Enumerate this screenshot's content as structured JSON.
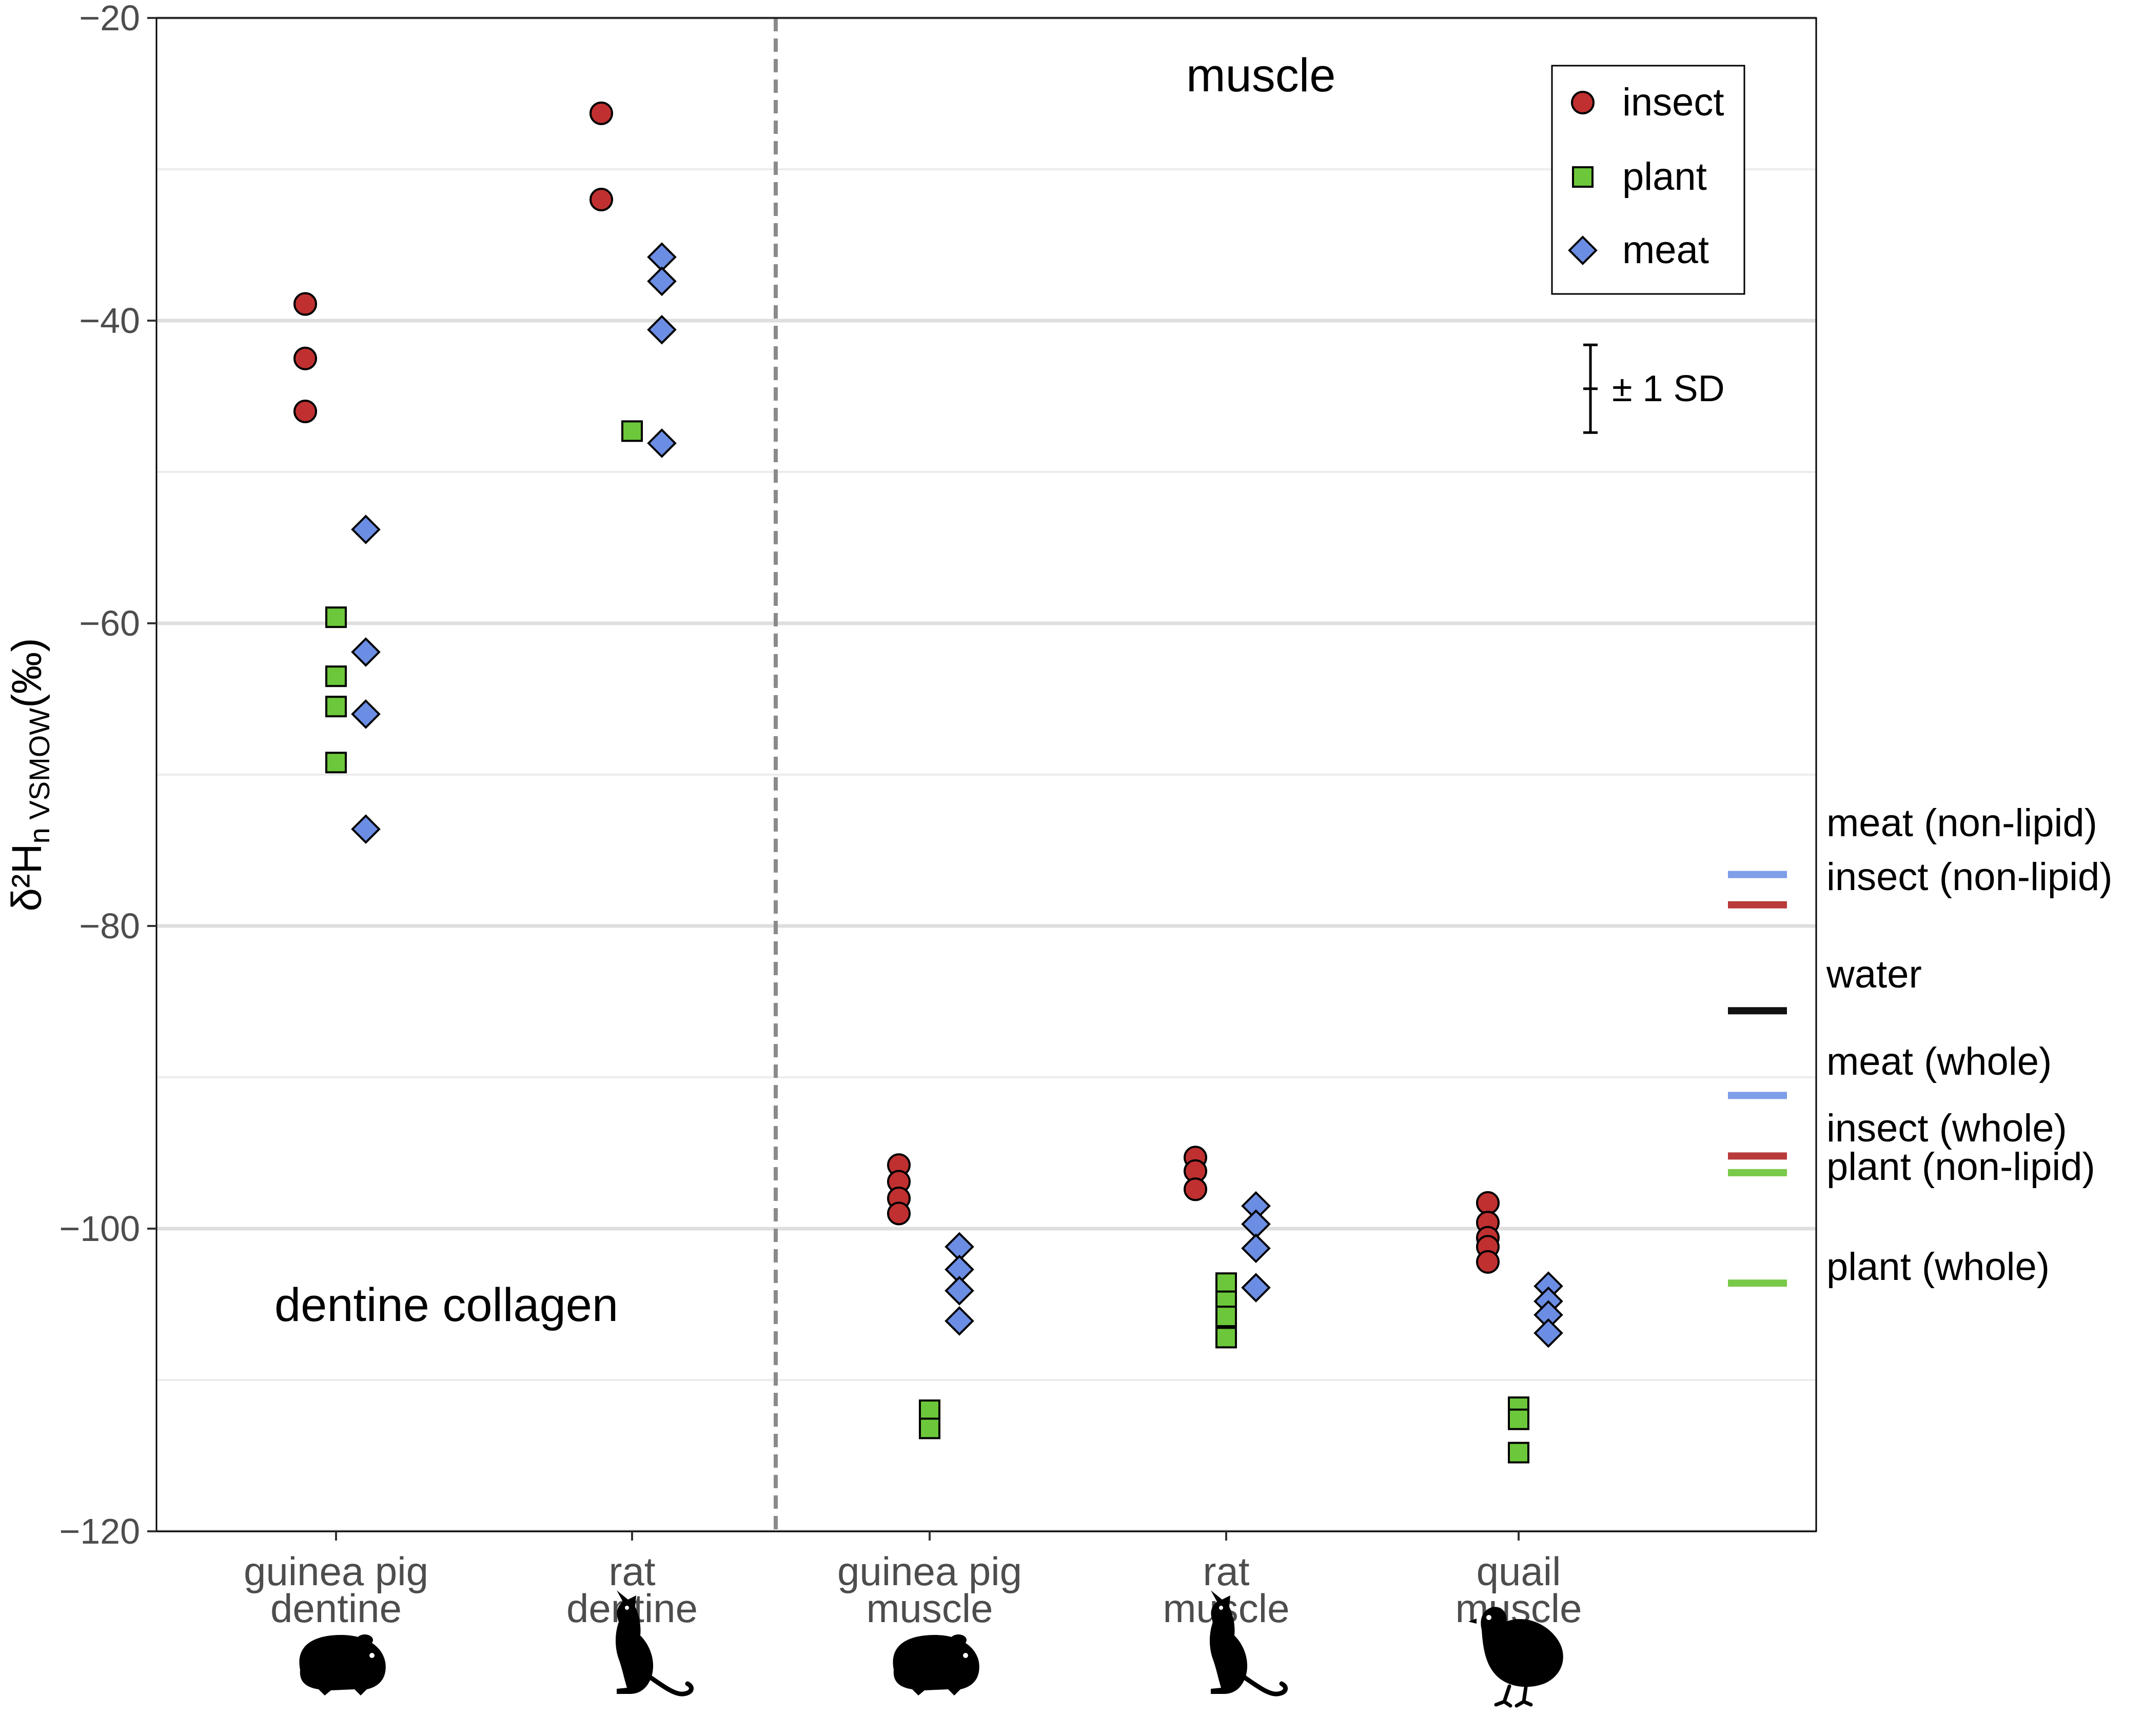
{
  "chart_data": {
    "type": "scatter",
    "title": "",
    "ylabel_main": "δ²H",
    "ylabel_sub": "n VSMOW",
    "ylabel_unit": "(‰)",
    "xlabel": "",
    "ylim": [
      -120,
      -20
    ],
    "yticks": [
      -120,
      -100,
      -80,
      -60,
      -40,
      -20
    ],
    "ytick_labels": [
      "−120",
      "−100",
      "−80",
      "−60",
      "−40",
      "−20"
    ],
    "minor_grid": [
      -110,
      -90,
      -70,
      -50,
      -30
    ],
    "categories": [
      {
        "line1": "guinea pig",
        "line2": "dentine",
        "animal": "guinea-pig"
      },
      {
        "line1": "rat",
        "line2": "dentine",
        "animal": "rat"
      },
      {
        "line1": "guinea pig",
        "line2": "muscle",
        "animal": "guinea-pig"
      },
      {
        "line1": "rat",
        "line2": "muscle",
        "animal": "rat"
      },
      {
        "line1": "quail",
        "line2": "muscle",
        "animal": "quail"
      }
    ],
    "panel_labels": {
      "left": "dentine collagen",
      "right": "muscle"
    },
    "series": [
      {
        "name": "insect",
        "shape": "circle",
        "color": "#c03030",
        "points": [
          {
            "cat": 0,
            "values": [
              -38.9,
              -42.5,
              -46.0
            ]
          },
          {
            "cat": 1,
            "values": [
              -26.3,
              -32.0
            ]
          },
          {
            "cat": 2,
            "values": [
              -95.8,
              -96.9,
              -98.0,
              -99.0
            ]
          },
          {
            "cat": 3,
            "values": [
              -95.3,
              -96.2,
              -97.4
            ]
          },
          {
            "cat": 4,
            "values": [
              -98.3,
              -99.6,
              -100.6,
              -101.2,
              -102.2
            ]
          }
        ]
      },
      {
        "name": "plant",
        "shape": "square",
        "color": "#6cc83a",
        "points": [
          {
            "cat": 0,
            "values": [
              -59.6,
              -63.5,
              -65.5,
              -69.2
            ]
          },
          {
            "cat": 1,
            "values": [
              -47.3
            ]
          },
          {
            "cat": 2,
            "values": [
              -112.0,
              -113.2
            ]
          },
          {
            "cat": 3,
            "values": [
              -103.6,
              -104.8,
              -105.8,
              -107.2
            ]
          },
          {
            "cat": 4,
            "values": [
              -111.8,
              -112.6,
              -114.8
            ]
          }
        ]
      },
      {
        "name": "meat",
        "shape": "diamond",
        "color": "#6b8de3",
        "points": [
          {
            "cat": 0,
            "values": [
              -53.8,
              -61.9,
              -66.0,
              -73.6
            ]
          },
          {
            "cat": 1,
            "values": [
              -35.8,
              -37.4,
              -40.6,
              -48.1
            ]
          },
          {
            "cat": 2,
            "values": [
              -101.2,
              -102.7,
              -104.1,
              -106.1
            ]
          },
          {
            "cat": 3,
            "values": [
              -98.5,
              -99.7,
              -101.3,
              -103.9
            ]
          },
          {
            "cat": 4,
            "values": [
              -103.8,
              -104.8,
              -105.7,
              -106.9
            ]
          }
        ]
      }
    ],
    "reference_lines": [
      {
        "label": "meat (non-lipid)",
        "value": -76.6,
        "color": "#7e9ee8"
      },
      {
        "label": "insect (non-lipid)",
        "value": -78.6,
        "color": "#b83a3a"
      },
      {
        "label": "water",
        "value": -85.6,
        "color": "#111111"
      },
      {
        "label": "meat (whole)",
        "value": -91.2,
        "color": "#7e9ee8"
      },
      {
        "label": "insect (whole)",
        "value": -95.2,
        "color": "#b83a3a"
      },
      {
        "label": "plant (non-lipid)",
        "value": -96.3,
        "color": "#79c94a"
      },
      {
        "label": "plant (whole)",
        "value": -103.6,
        "color": "#79c94a"
      }
    ],
    "legend": {
      "position": "top-right",
      "entries": [
        "insect",
        "plant",
        "meat"
      ]
    },
    "sd_indicator": {
      "label": "± 1 SD",
      "center": -44.5,
      "half_range": 2.9
    }
  }
}
